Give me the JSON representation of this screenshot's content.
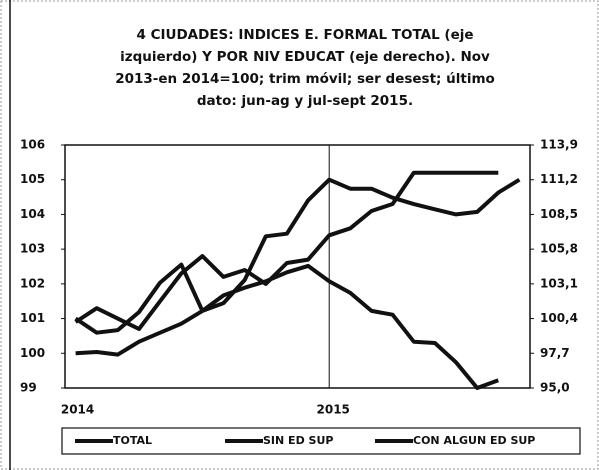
{
  "chart_data": {
    "type": "line",
    "title": "4 CIUDADES: INDICES E. FORMAL TOTAL (eje izquierdo) Y POR NIV EDUCAT (eje derecho). Nov 2013-en 2014=100; trim móvil; ser desest; último dato: jun-ag y jul-sept 2015.",
    "categories": [
      "2014",
      null,
      null,
      null,
      null,
      null,
      null,
      null,
      null,
      null,
      null,
      null,
      "2015",
      null,
      null,
      null,
      null,
      null,
      null,
      null,
      null,
      null
    ],
    "series": [
      {
        "name": "TOTAL",
        "color": "#111111",
        "axis": "y",
        "values": [
          100.9,
          101.3,
          101.0,
          100.7,
          101.5,
          102.3,
          102.8,
          102.2,
          102.4,
          102.0,
          102.6,
          102.7,
          103.4,
          103.6,
          104.1,
          104.3,
          105.2,
          105.2,
          105.2,
          105.2,
          105.2,
          null
        ]
      },
      {
        "name": "SIN ED SUP",
        "color": "#111111",
        "axis": "y2",
        "values": [
          97.7,
          97.8,
          97.6,
          98.6,
          99.3,
          100.0,
          101.0,
          102.2,
          102.8,
          103.3,
          104.0,
          104.5,
          103.3,
          102.4,
          101.0,
          100.7,
          98.6,
          98.5,
          97.0,
          95.0,
          95.6,
          null
        ]
      },
      {
        "name": "CON ALGUN ED SUP",
        "color": "#111111",
        "axis": "y2",
        "values": [
          100.4,
          99.3,
          99.5,
          100.9,
          103.2,
          104.6,
          101.0,
          101.6,
          103.4,
          106.8,
          107.0,
          109.6,
          111.2,
          110.5,
          110.5,
          109.8,
          109.3,
          108.9,
          108.5,
          108.7,
          110.2,
          111.2
        ]
      }
    ],
    "ylim": [
      99,
      106
    ],
    "yticks": [
      99,
      100,
      101,
      102,
      103,
      104,
      105,
      106
    ],
    "y2lim": [
      95.0,
      113.9
    ],
    "y2ticks": [
      {
        "value": 95.0,
        "label": "95,0"
      },
      {
        "value": 97.7,
        "label": "97,7"
      },
      {
        "value": 100.4,
        "label": "100,4"
      },
      {
        "value": 103.1,
        "label": "103,1"
      },
      {
        "value": 105.8,
        "label": "105,8"
      },
      {
        "value": 108.5,
        "label": "108,5"
      },
      {
        "value": 111.2,
        "label": "111,2"
      },
      {
        "value": 113.9,
        "label": "113,9"
      }
    ],
    "grid": false,
    "legend": "bottom"
  }
}
